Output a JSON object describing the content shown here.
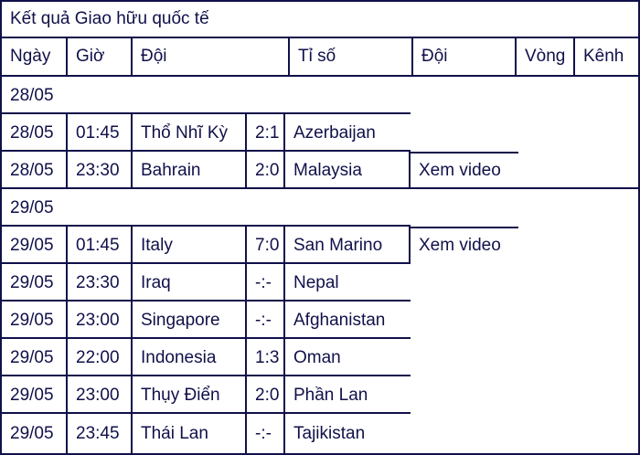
{
  "title": "Kết quả Giao hữu quốc tế",
  "colors": {
    "ink": "#10104a",
    "background": "#ffffff"
  },
  "table": {
    "headers": [
      "Ngày",
      "Giờ",
      "Đội",
      "Tỉ số",
      "Đội",
      "Vòng",
      "Kênh"
    ],
    "video_label": "Xem video",
    "rows": [
      {
        "type": "group",
        "date": "28/05"
      },
      {
        "type": "match",
        "date": "28/05",
        "time": "01:45",
        "home": "Thổ Nhĩ Kỳ",
        "score": "2:1",
        "away": "Azerbaijan",
        "video": ""
      },
      {
        "type": "match",
        "date": "28/05",
        "time": "23:30",
        "home": "Bahrain",
        "score": "2:0",
        "away": "Malaysia",
        "video": "Xem video",
        "group_end": true
      },
      {
        "type": "group",
        "date": "29/05"
      },
      {
        "type": "match",
        "date": "29/05",
        "time": "01:45",
        "home": "Italy",
        "score": "7:0",
        "away": "San Marino",
        "video": "Xem video"
      },
      {
        "type": "match",
        "date": "29/05",
        "time": "23:30",
        "home": "Iraq",
        "score": "-:-",
        "away": "Nepal",
        "video": ""
      },
      {
        "type": "match",
        "date": "29/05",
        "time": "23:00",
        "home": "Singapore",
        "score": "-:-",
        "away": "Afghanistan",
        "video": ""
      },
      {
        "type": "match",
        "date": "29/05",
        "time": "22:00",
        "home": "Indonesia",
        "score": "1:3",
        "away": "Oman",
        "video": ""
      },
      {
        "type": "match",
        "date": "29/05",
        "time": "23:00",
        "home": "Thụy Điển",
        "score": "2:0",
        "away": "Phần Lan",
        "video": ""
      },
      {
        "type": "match",
        "date": "29/05",
        "time": "23:45",
        "home": "Thái Lan",
        "score": "-:-",
        "away": "Tajikistan",
        "video": "",
        "group_end": true
      }
    ]
  }
}
